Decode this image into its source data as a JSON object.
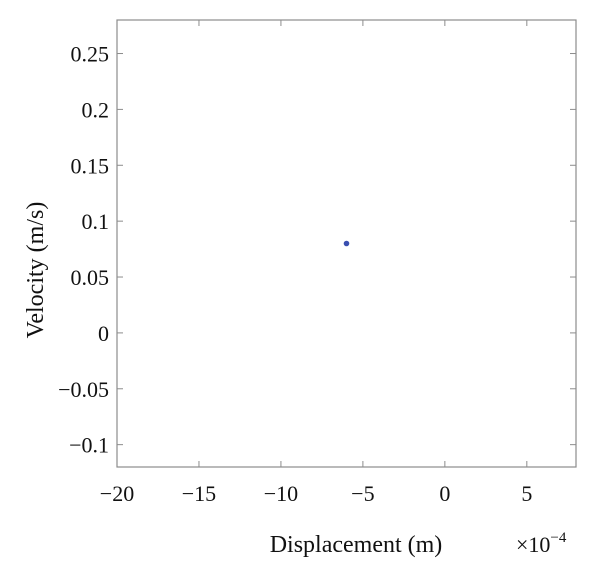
{
  "chart_data": {
    "type": "scatter",
    "title": "",
    "xlabel": "Displacement (m)",
    "ylabel": "Velocity (m/s)",
    "x_exponent_label": "×10",
    "x_exponent_power": "−4",
    "xlim": [
      -20,
      8
    ],
    "ylim": [
      -0.12,
      0.28
    ],
    "xticks": [
      -20,
      -15,
      -10,
      -5,
      0,
      5
    ],
    "xtick_labels": [
      "−20",
      "−15",
      "−10",
      "−5",
      "0",
      "5"
    ],
    "yticks": [
      0.25,
      0.2,
      0.15,
      0.1,
      0.05,
      0,
      -0.05,
      -0.1
    ],
    "ytick_labels": [
      "0.25",
      "0.2",
      "0.15",
      "0.1",
      "0.05",
      "0",
      "−0.05",
      "−0.1"
    ],
    "grid": false,
    "points": [
      {
        "x": -6.0,
        "y": 0.08
      }
    ],
    "marker_color": "#3a4fb0"
  }
}
